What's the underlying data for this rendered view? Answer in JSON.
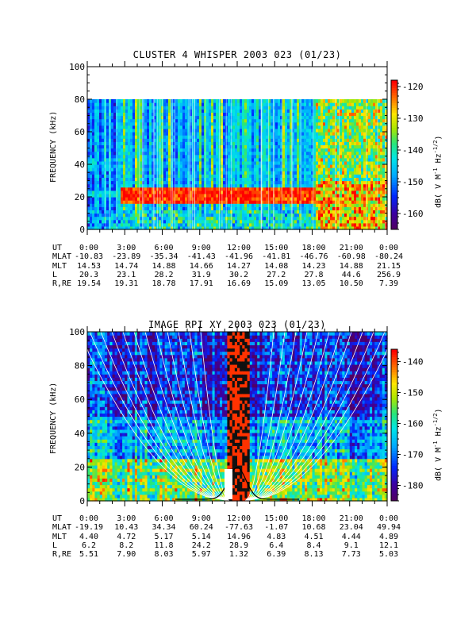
{
  "chart_data": [
    {
      "type": "heatmap",
      "title": "CLUSTER 4 WHISPER 2003 023 (01/23)",
      "ylabel": "FREQUENCY (kHz)",
      "ylim": [
        0,
        100
      ],
      "yticks": [
        "0",
        "20",
        "40",
        "60",
        "80",
        "100"
      ],
      "data_max_freq": 80,
      "colorbar": {
        "label": "dB( V M-1 Hz-1/2)",
        "range": [
          -165,
          -118
        ],
        "ticks": [
          "-120",
          "-130",
          "-140",
          "-150",
          "-160"
        ]
      },
      "ephemeris": {
        "labels": [
          "UT",
          "MLAT",
          "MLT",
          "L",
          "R,RE"
        ],
        "columns": [
          [
            "0:00",
            "-10.83",
            "14.53",
            "20.3",
            "19.54"
          ],
          [
            "3:00",
            "-23.89",
            "14.74",
            "23.1",
            "19.31"
          ],
          [
            "6:00",
            "-35.34",
            "14.88",
            "28.2",
            "18.78"
          ],
          [
            "9:00",
            "-41.43",
            "14.66",
            "31.9",
            "17.91"
          ],
          [
            "12:00",
            "-41.96",
            "14.27",
            "30.2",
            "16.69"
          ],
          [
            "15:00",
            "-41.81",
            "14.08",
            "27.2",
            "15.09"
          ],
          [
            "18:00",
            "-46.76",
            "14.23",
            "27.8",
            "13.05"
          ],
          [
            "21:00",
            "-60.98",
            "14.88",
            "44.6",
            "10.50"
          ],
          [
            "0:00",
            "-80.24",
            "21.15",
            "256.9",
            "7.39"
          ]
        ]
      }
    },
    {
      "type": "heatmap",
      "title": "IMAGE RPI XY 2003 023 (01/23)",
      "ylabel": "FREQUENCY (kHz)",
      "ylim": [
        0,
        100
      ],
      "yticks": [
        "0",
        "20",
        "40",
        "60",
        "80",
        "100"
      ],
      "colorbar": {
        "label": "dB( V M-1 Hz-1/2)",
        "range": [
          -185,
          -136
        ],
        "ticks": [
          "-140",
          "-150",
          "-160",
          "-170",
          "-180"
        ]
      },
      "ephemeris": {
        "labels": [
          "UT",
          "MLAT",
          "MLT",
          "L",
          "R,RE"
        ],
        "columns": [
          [
            "0:00",
            "-19.19",
            "4.40",
            "6.2",
            "5.51"
          ],
          [
            "3:00",
            "10.43",
            "4.72",
            "8.2",
            "7.90"
          ],
          [
            "6:00",
            "34.34",
            "5.17",
            "11.8",
            "8.03"
          ],
          [
            "9:00",
            "60.24",
            "5.14",
            "24.2",
            "5.97"
          ],
          [
            "12:00",
            "-77.63",
            "14.96",
            "28.9",
            "1.32"
          ],
          [
            "15:00",
            "-1.07",
            "4.83",
            "6.4",
            "6.39"
          ],
          [
            "18:00",
            "10.68",
            "4.51",
            "8.4",
            "8.13"
          ],
          [
            "21:00",
            "23.04",
            "4.44",
            "9.1",
            "7.73"
          ],
          [
            "0:00",
            "49.94",
            "4.89",
            "12.1",
            "5.03"
          ]
        ]
      }
    }
  ]
}
